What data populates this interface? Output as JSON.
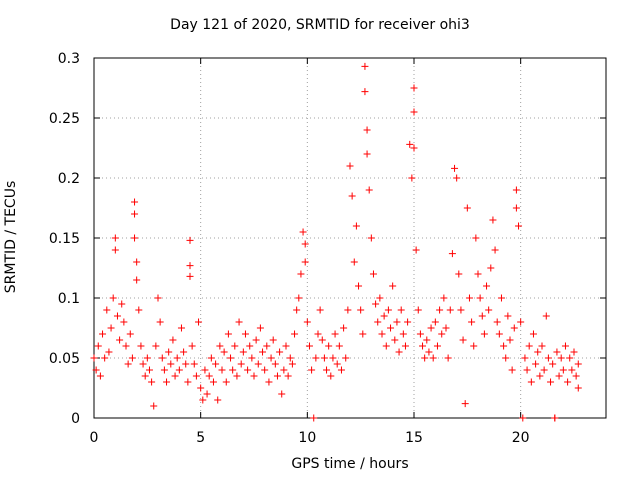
{
  "chart_data": {
    "type": "scatter",
    "title": "Day 121 of 2020, SRMTID for receiver ohi3",
    "xlabel": "GPS time / hours",
    "ylabel": "SRMTID / TECUs",
    "xlim": [
      0,
      24
    ],
    "ylim": [
      0,
      0.3
    ],
    "xticks": [
      0,
      5,
      10,
      15,
      20
    ],
    "xtick_labels": [
      "0",
      "5",
      "10",
      "15",
      "20"
    ],
    "yticks": [
      0,
      0.05,
      0.1,
      0.15,
      0.2,
      0.25,
      0.3
    ],
    "ytick_labels": [
      "0",
      "0.05",
      "0.1",
      "0.15",
      "0.2",
      "0.25",
      "0.3"
    ],
    "grid": true,
    "marker": "+",
    "color": "#ff0000",
    "series": [
      {
        "name": "SRMTID",
        "points": [
          [
            0.0,
            0.05
          ],
          [
            0.1,
            0.04
          ],
          [
            0.2,
            0.06
          ],
          [
            0.3,
            0.035
          ],
          [
            0.4,
            0.07
          ],
          [
            0.5,
            0.05
          ],
          [
            0.6,
            0.09
          ],
          [
            0.7,
            0.055
          ],
          [
            0.8,
            0.075
          ],
          [
            0.9,
            0.1
          ],
          [
            1.0,
            0.15
          ],
          [
            1.0,
            0.14
          ],
          [
            1.1,
            0.085
          ],
          [
            1.2,
            0.065
          ],
          [
            1.3,
            0.095
          ],
          [
            1.4,
            0.08
          ],
          [
            1.5,
            0.06
          ],
          [
            1.6,
            0.045
          ],
          [
            1.7,
            0.07
          ],
          [
            1.8,
            0.05
          ],
          [
            1.9,
            0.17
          ],
          [
            1.9,
            0.18
          ],
          [
            1.9,
            0.15
          ],
          [
            2.0,
            0.13
          ],
          [
            2.0,
            0.115
          ],
          [
            2.1,
            0.09
          ],
          [
            2.2,
            0.06
          ],
          [
            2.3,
            0.045
          ],
          [
            2.4,
            0.035
          ],
          [
            2.5,
            0.05
          ],
          [
            2.6,
            0.04
          ],
          [
            2.7,
            0.03
          ],
          [
            2.8,
            0.01
          ],
          [
            2.9,
            0.06
          ],
          [
            3.0,
            0.1
          ],
          [
            3.1,
            0.08
          ],
          [
            3.2,
            0.05
          ],
          [
            3.3,
            0.04
          ],
          [
            3.4,
            0.03
          ],
          [
            3.5,
            0.055
          ],
          [
            3.6,
            0.045
          ],
          [
            3.7,
            0.065
          ],
          [
            3.8,
            0.035
          ],
          [
            3.9,
            0.05
          ],
          [
            4.0,
            0.04
          ],
          [
            4.1,
            0.075
          ],
          [
            4.2,
            0.055
          ],
          [
            4.3,
            0.045
          ],
          [
            4.4,
            0.03
          ],
          [
            4.5,
            0.148
          ],
          [
            4.5,
            0.127
          ],
          [
            4.5,
            0.118
          ],
          [
            4.6,
            0.06
          ],
          [
            4.7,
            0.045
          ],
          [
            4.8,
            0.035
          ],
          [
            4.9,
            0.08
          ],
          [
            5.0,
            0.025
          ],
          [
            5.1,
            0.015
          ],
          [
            5.2,
            0.04
          ],
          [
            5.3,
            0.02
          ],
          [
            5.4,
            0.035
          ],
          [
            5.5,
            0.05
          ],
          [
            5.6,
            0.03
          ],
          [
            5.7,
            0.045
          ],
          [
            5.8,
            0.015
          ],
          [
            5.9,
            0.06
          ],
          [
            6.0,
            0.04
          ],
          [
            6.1,
            0.055
          ],
          [
            6.2,
            0.03
          ],
          [
            6.3,
            0.07
          ],
          [
            6.4,
            0.05
          ],
          [
            6.5,
            0.04
          ],
          [
            6.6,
            0.06
          ],
          [
            6.7,
            0.035
          ],
          [
            6.8,
            0.08
          ],
          [
            6.9,
            0.045
          ],
          [
            7.0,
            0.055
          ],
          [
            7.1,
            0.07
          ],
          [
            7.2,
            0.04
          ],
          [
            7.3,
            0.06
          ],
          [
            7.4,
            0.05
          ],
          [
            7.5,
            0.035
          ],
          [
            7.6,
            0.065
          ],
          [
            7.7,
            0.045
          ],
          [
            7.8,
            0.075
          ],
          [
            7.9,
            0.055
          ],
          [
            8.0,
            0.04
          ],
          [
            8.1,
            0.06
          ],
          [
            8.2,
            0.03
          ],
          [
            8.3,
            0.05
          ],
          [
            8.4,
            0.065
          ],
          [
            8.5,
            0.045
          ],
          [
            8.6,
            0.035
          ],
          [
            8.7,
            0.055
          ],
          [
            8.8,
            0.02
          ],
          [
            8.9,
            0.04
          ],
          [
            9.0,
            0.06
          ],
          [
            9.1,
            0.035
          ],
          [
            9.2,
            0.05
          ],
          [
            9.3,
            0.045
          ],
          [
            9.4,
            0.07
          ],
          [
            9.5,
            0.09
          ],
          [
            9.6,
            0.1
          ],
          [
            9.7,
            0.12
          ],
          [
            9.8,
            0.155
          ],
          [
            9.9,
            0.145
          ],
          [
            9.9,
            0.13
          ],
          [
            10.0,
            0.08
          ],
          [
            10.1,
            0.06
          ],
          [
            10.2,
            0.04
          ],
          [
            10.3,
            0.0
          ],
          [
            10.4,
            0.05
          ],
          [
            10.5,
            0.07
          ],
          [
            10.6,
            0.09
          ],
          [
            10.7,
            0.065
          ],
          [
            10.8,
            0.05
          ],
          [
            10.9,
            0.04
          ],
          [
            11.0,
            0.06
          ],
          [
            11.1,
            0.035
          ],
          [
            11.2,
            0.05
          ],
          [
            11.3,
            0.07
          ],
          [
            11.4,
            0.045
          ],
          [
            11.5,
            0.06
          ],
          [
            11.6,
            0.04
          ],
          [
            11.7,
            0.075
          ],
          [
            11.8,
            0.05
          ],
          [
            11.9,
            0.09
          ],
          [
            12.0,
            0.21
          ],
          [
            12.1,
            0.185
          ],
          [
            12.2,
            0.13
          ],
          [
            12.3,
            0.16
          ],
          [
            12.4,
            0.11
          ],
          [
            12.5,
            0.09
          ],
          [
            12.6,
            0.07
          ],
          [
            12.7,
            0.293
          ],
          [
            12.7,
            0.272
          ],
          [
            12.8,
            0.24
          ],
          [
            12.8,
            0.22
          ],
          [
            12.9,
            0.19
          ],
          [
            13.0,
            0.15
          ],
          [
            13.1,
            0.12
          ],
          [
            13.2,
            0.095
          ],
          [
            13.3,
            0.08
          ],
          [
            13.4,
            0.1
          ],
          [
            13.5,
            0.07
          ],
          [
            13.6,
            0.085
          ],
          [
            13.7,
            0.06
          ],
          [
            13.8,
            0.09
          ],
          [
            13.9,
            0.075
          ],
          [
            14.0,
            0.11
          ],
          [
            14.1,
            0.065
          ],
          [
            14.2,
            0.08
          ],
          [
            14.3,
            0.055
          ],
          [
            14.4,
            0.09
          ],
          [
            14.5,
            0.07
          ],
          [
            14.6,
            0.06
          ],
          [
            14.7,
            0.08
          ],
          [
            14.8,
            0.228
          ],
          [
            14.9,
            0.2
          ],
          [
            15.0,
            0.275
          ],
          [
            15.0,
            0.255
          ],
          [
            15.0,
            0.225
          ],
          [
            15.1,
            0.14
          ],
          [
            15.2,
            0.09
          ],
          [
            15.3,
            0.07
          ],
          [
            15.4,
            0.06
          ],
          [
            15.5,
            0.05
          ],
          [
            15.6,
            0.065
          ],
          [
            15.7,
            0.055
          ],
          [
            15.8,
            0.075
          ],
          [
            15.9,
            0.05
          ],
          [
            16.0,
            0.08
          ],
          [
            16.1,
            0.06
          ],
          [
            16.2,
            0.09
          ],
          [
            16.3,
            0.07
          ],
          [
            16.4,
            0.1
          ],
          [
            16.5,
            0.075
          ],
          [
            16.6,
            0.05
          ],
          [
            16.7,
            0.09
          ],
          [
            16.8,
            0.137
          ],
          [
            16.9,
            0.208
          ],
          [
            17.0,
            0.2
          ],
          [
            17.1,
            0.12
          ],
          [
            17.2,
            0.09
          ],
          [
            17.3,
            0.065
          ],
          [
            17.4,
            0.012
          ],
          [
            17.5,
            0.175
          ],
          [
            17.6,
            0.1
          ],
          [
            17.7,
            0.08
          ],
          [
            17.8,
            0.06
          ],
          [
            17.9,
            0.15
          ],
          [
            18.0,
            0.12
          ],
          [
            18.1,
            0.1
          ],
          [
            18.2,
            0.085
          ],
          [
            18.3,
            0.07
          ],
          [
            18.4,
            0.11
          ],
          [
            18.5,
            0.09
          ],
          [
            18.6,
            0.125
          ],
          [
            18.7,
            0.165
          ],
          [
            18.8,
            0.14
          ],
          [
            18.9,
            0.08
          ],
          [
            19.0,
            0.07
          ],
          [
            19.1,
            0.1
          ],
          [
            19.2,
            0.06
          ],
          [
            19.3,
            0.05
          ],
          [
            19.4,
            0.085
          ],
          [
            19.5,
            0.065
          ],
          [
            19.6,
            0.04
          ],
          [
            19.7,
            0.075
          ],
          [
            19.8,
            0.19
          ],
          [
            19.8,
            0.175
          ],
          [
            19.9,
            0.16
          ],
          [
            20.0,
            0.08
          ],
          [
            20.1,
            0.0
          ],
          [
            20.2,
            0.05
          ],
          [
            20.3,
            0.04
          ],
          [
            20.4,
            0.06
          ],
          [
            20.5,
            0.03
          ],
          [
            20.6,
            0.07
          ],
          [
            20.7,
            0.045
          ],
          [
            20.8,
            0.055
          ],
          [
            20.9,
            0.035
          ],
          [
            21.0,
            0.06
          ],
          [
            21.1,
            0.04
          ],
          [
            21.2,
            0.085
          ],
          [
            21.3,
            0.05
          ],
          [
            21.4,
            0.03
          ],
          [
            21.5,
            0.045
          ],
          [
            21.6,
            0.0
          ],
          [
            21.6,
            0.0
          ],
          [
            21.7,
            0.055
          ],
          [
            21.8,
            0.035
          ],
          [
            21.9,
            0.05
          ],
          [
            22.0,
            0.04
          ],
          [
            22.1,
            0.06
          ],
          [
            22.2,
            0.03
          ],
          [
            22.3,
            0.05
          ],
          [
            22.4,
            0.04
          ],
          [
            22.5,
            0.055
          ],
          [
            22.6,
            0.035
          ],
          [
            22.7,
            0.045
          ],
          [
            22.7,
            0.025
          ]
        ]
      }
    ]
  }
}
